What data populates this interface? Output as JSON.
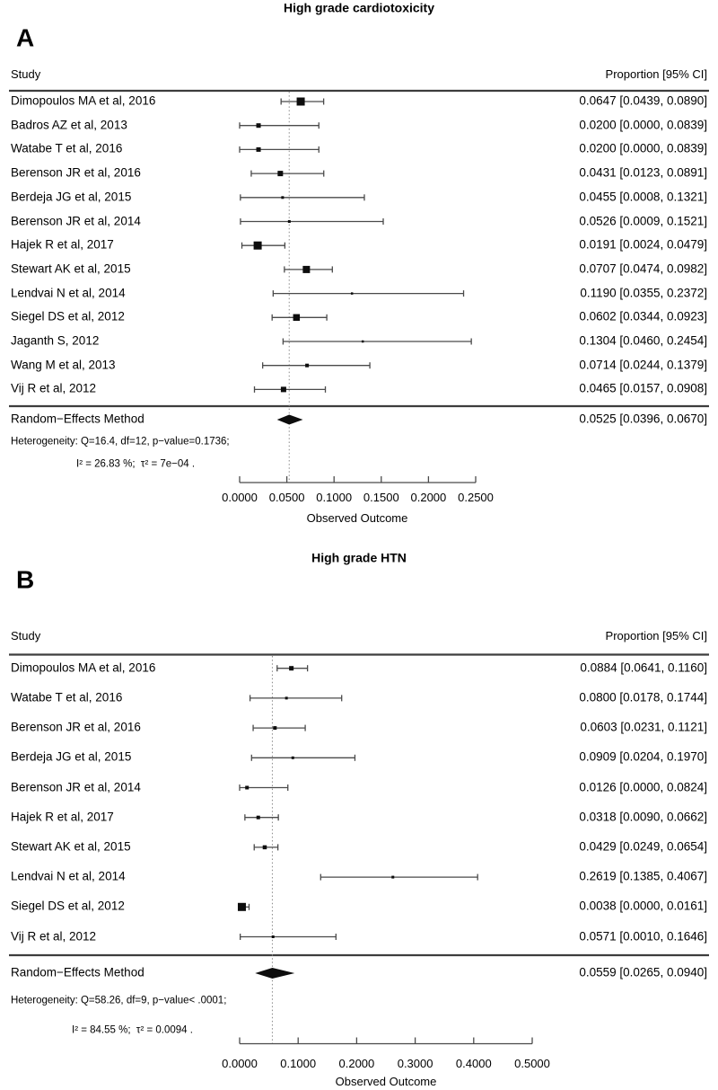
{
  "chart_data": [
    {
      "type": "forest",
      "panel_label": "A",
      "title": "High grade cardiotoxicity",
      "columns": {
        "study": "Study",
        "proportion": "Proportion [95% CI]"
      },
      "xlabel": "Observed Outcome",
      "axis": {
        "min": 0.0,
        "max": 0.25,
        "tick_values": [
          0.0,
          0.05,
          0.1,
          0.15,
          0.2,
          0.25
        ],
        "tick_labels": [
          "0.0000",
          "0.0500",
          "0.1000",
          "0.1500",
          "0.2000",
          "0.2500"
        ]
      },
      "studies": [
        {
          "name": "Dimopoulos MA et al, 2016",
          "estimate": 0.0647,
          "ci_low": 0.0439,
          "ci_high": 0.089,
          "label": "0.0647 [0.0439, 0.0890]",
          "marker_size": 9
        },
        {
          "name": "Badros AZ et al, 2013",
          "estimate": 0.02,
          "ci_low": 0.0,
          "ci_high": 0.0839,
          "label": "0.0200 [0.0000, 0.0839]",
          "marker_size": 5
        },
        {
          "name": "Watabe T et al, 2016",
          "estimate": 0.02,
          "ci_low": 0.0,
          "ci_high": 0.0839,
          "label": "0.0200 [0.0000, 0.0839]",
          "marker_size": 5
        },
        {
          "name": "Berenson JR et al, 2016",
          "estimate": 0.0431,
          "ci_low": 0.0123,
          "ci_high": 0.0891,
          "label": "0.0431 [0.0123, 0.0891]",
          "marker_size": 6
        },
        {
          "name": "Berdeja JG et al, 2015",
          "estimate": 0.0455,
          "ci_low": 0.0008,
          "ci_high": 0.1321,
          "label": "0.0455 [0.0008, 0.1321]",
          "marker_size": 3
        },
        {
          "name": "Berenson JR et al, 2014",
          "estimate": 0.0526,
          "ci_low": 0.0009,
          "ci_high": 0.1521,
          "label": "0.0526 [0.0009, 0.1521]",
          "marker_size": 3
        },
        {
          "name": "Hajek R et al, 2017",
          "estimate": 0.0191,
          "ci_low": 0.0024,
          "ci_high": 0.0479,
          "label": "0.0191 [0.0024, 0.0479]",
          "marker_size": 9
        },
        {
          "name": "Stewart AK et al, 2015",
          "estimate": 0.0707,
          "ci_low": 0.0474,
          "ci_high": 0.0982,
          "label": "0.0707 [0.0474, 0.0982]",
          "marker_size": 8
        },
        {
          "name": "Lendvai N et al, 2014",
          "estimate": 0.119,
          "ci_low": 0.0355,
          "ci_high": 0.2372,
          "label": "0.1190 [0.0355, 0.2372]",
          "marker_size": 2.5
        },
        {
          "name": "Siegel DS et al, 2012",
          "estimate": 0.0602,
          "ci_low": 0.0344,
          "ci_high": 0.0923,
          "label": "0.0602 [0.0344, 0.0923]",
          "marker_size": 7.5
        },
        {
          "name": "Jaganth S, 2012",
          "estimate": 0.1304,
          "ci_low": 0.046,
          "ci_high": 0.2454,
          "label": "0.1304 [0.0460, 0.2454]",
          "marker_size": 2.5
        },
        {
          "name": "Wang M et al, 2013",
          "estimate": 0.0714,
          "ci_low": 0.0244,
          "ci_high": 0.1379,
          "label": "0.0714 [0.0244, 0.1379]",
          "marker_size": 4
        },
        {
          "name": "Vij R et al, 2012",
          "estimate": 0.0465,
          "ci_low": 0.0157,
          "ci_high": 0.0908,
          "label": "0.0465 [0.0157, 0.0908]",
          "marker_size": 6
        }
      ],
      "summary": {
        "label": "Random−Effects Method",
        "estimate": 0.0525,
        "ci_low": 0.0396,
        "ci_high": 0.067,
        "text": "0.0525 [0.0396, 0.0670]"
      },
      "heterogeneity": {
        "line1": "Heterogeneity: Q=16.4, df=12, p−value=0.1736;",
        "line2": "I² = 26.83 %;  τ² = 7e−04 ."
      }
    },
    {
      "type": "forest",
      "panel_label": "B",
      "title": "High grade HTN",
      "columns": {
        "study": "Study",
        "proportion": "Proportion [95% CI]"
      },
      "xlabel": "Observed Outcome",
      "axis": {
        "min": 0.0,
        "max": 0.5,
        "tick_values": [
          0.0,
          0.1,
          0.2,
          0.3,
          0.4,
          0.5
        ],
        "tick_labels": [
          "0.0000",
          "0.1000",
          "0.2000",
          "0.3000",
          "0.4000",
          "0.5000"
        ]
      },
      "studies": [
        {
          "name": "Dimopoulos MA et al, 2016",
          "estimate": 0.0884,
          "ci_low": 0.0641,
          "ci_high": 0.116,
          "label": "0.0884 [0.0641, 0.1160]",
          "marker_size": 5
        },
        {
          "name": "Watabe T et al, 2016",
          "estimate": 0.08,
          "ci_low": 0.0178,
          "ci_high": 0.1744,
          "label": "0.0800 [0.0178, 0.1744]",
          "marker_size": 3
        },
        {
          "name": "Berenson JR et al, 2016",
          "estimate": 0.0603,
          "ci_low": 0.0231,
          "ci_high": 0.1121,
          "label": "0.0603 [0.0231, 0.1121]",
          "marker_size": 4
        },
        {
          "name": "Berdeja JG et al, 2015",
          "estimate": 0.0909,
          "ci_low": 0.0204,
          "ci_high": 0.197,
          "label": "0.0909 [0.0204, 0.1970]",
          "marker_size": 3
        },
        {
          "name": "Berenson JR et al, 2014",
          "estimate": 0.0126,
          "ci_low": 0.0,
          "ci_high": 0.0824,
          "label": "0.0126 [0.0000, 0.0824]",
          "marker_size": 4
        },
        {
          "name": "Hajek R et al, 2017",
          "estimate": 0.0318,
          "ci_low": 0.009,
          "ci_high": 0.0662,
          "label": "0.0318 [0.0090, 0.0662]",
          "marker_size": 4
        },
        {
          "name": "Stewart AK et al, 2015",
          "estimate": 0.0429,
          "ci_low": 0.0249,
          "ci_high": 0.0654,
          "label": "0.0429 [0.0249, 0.0654]",
          "marker_size": 4.5
        },
        {
          "name": "Lendvai N et al, 2014",
          "estimate": 0.2619,
          "ci_low": 0.1385,
          "ci_high": 0.4067,
          "label": "0.2619 [0.1385, 0.4067]",
          "marker_size": 3
        },
        {
          "name": "Siegel DS et al, 2012",
          "estimate": 0.0038,
          "ci_low": 0.0,
          "ci_high": 0.0161,
          "label": "0.0038 [0.0000, 0.0161]",
          "marker_size": 9
        },
        {
          "name": "Vij R et al, 2012",
          "estimate": 0.0571,
          "ci_low": 0.001,
          "ci_high": 0.1646,
          "label": "0.0571 [0.0010, 0.1646]",
          "marker_size": 3
        }
      ],
      "summary": {
        "label": "Random−Effects Method",
        "estimate": 0.0559,
        "ci_low": 0.0265,
        "ci_high": 0.094,
        "text": "0.0559 [0.0265, 0.0940]"
      },
      "heterogeneity": {
        "line1": "Heterogeneity: Q=58.26, df=9, p−value< .0001;",
        "line2": "I² = 84.55 %;  τ² = 0.0094 ."
      }
    }
  ],
  "colors": {
    "text": "#000000",
    "marker": "#0d0d0d",
    "ci_line": "#4a4a4a",
    "rule": "#3d3d3d",
    "dotted_reference": "#8a8a8a",
    "background": "#ffffff"
  }
}
